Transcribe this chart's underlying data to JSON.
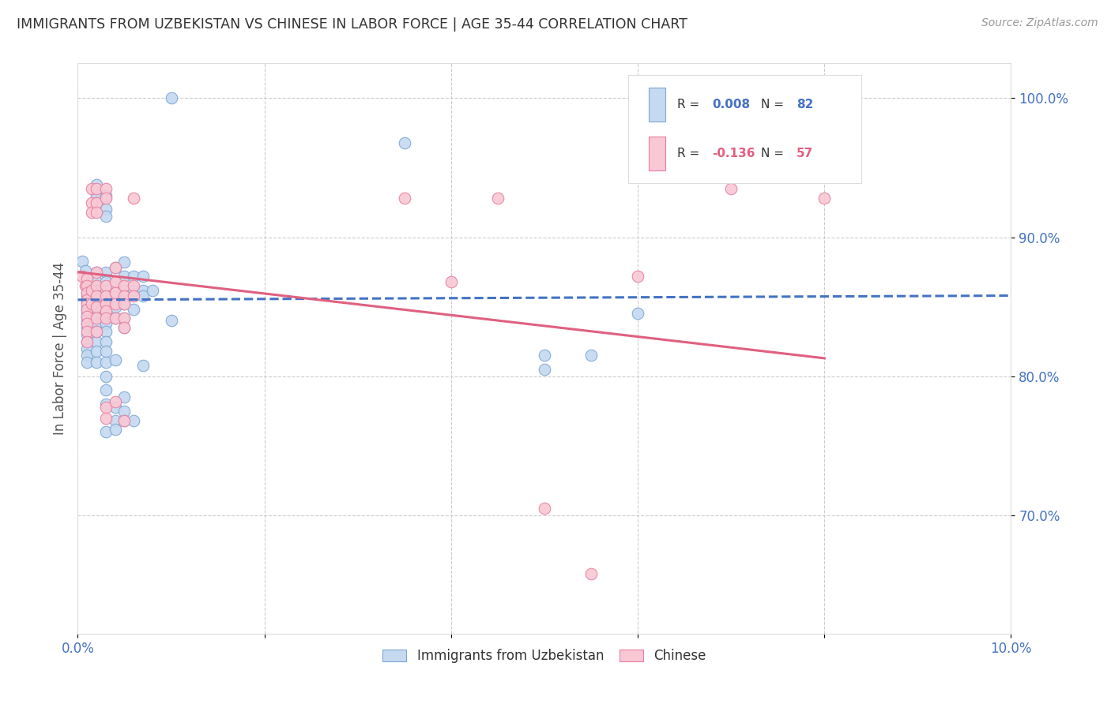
{
  "title": "IMMIGRANTS FROM UZBEKISTAN VS CHINESE IN LABOR FORCE | AGE 35-44 CORRELATION CHART",
  "source": "Source: ZipAtlas.com",
  "ylabel": "In Labor Force | Age 35-44",
  "xlim": [
    0.0,
    0.1
  ],
  "ylim": [
    0.615,
    1.025
  ],
  "yticks": [
    0.7,
    0.8,
    0.9,
    1.0
  ],
  "ytick_labels": [
    "70.0%",
    "80.0%",
    "90.0%",
    "100.0%"
  ],
  "xticks": [
    0.0,
    0.02,
    0.04,
    0.06,
    0.08,
    0.1
  ],
  "xtick_labels": [
    "0.0%",
    "",
    "",
    "",
    "",
    "10.0%"
  ],
  "uzbek_color": "#c5d9f0",
  "chinese_color": "#f9c8d4",
  "uzbek_edge_color": "#7ea6d4",
  "chinese_edge_color": "#e87fa0",
  "uzbek_line_color": "#4472c4",
  "chinese_line_color": "#e06080",
  "background_color": "#ffffff",
  "grid_color": "#cccccc",
  "title_color": "#333333",
  "axis_tick_color": "#4472c4",
  "uzbek_scatter": [
    [
      0.0005,
      0.883
    ],
    [
      0.0008,
      0.876
    ],
    [
      0.001,
      0.87
    ],
    [
      0.001,
      0.865
    ],
    [
      0.001,
      0.86
    ],
    [
      0.001,
      0.858
    ],
    [
      0.001,
      0.855
    ],
    [
      0.001,
      0.853
    ],
    [
      0.001,
      0.85
    ],
    [
      0.001,
      0.848
    ],
    [
      0.001,
      0.845
    ],
    [
      0.001,
      0.843
    ],
    [
      0.001,
      0.84
    ],
    [
      0.001,
      0.838
    ],
    [
      0.001,
      0.835
    ],
    [
      0.001,
      0.83
    ],
    [
      0.001,
      0.825
    ],
    [
      0.001,
      0.82
    ],
    [
      0.001,
      0.815
    ],
    [
      0.001,
      0.81
    ],
    [
      0.0015,
      0.862
    ],
    [
      0.0015,
      0.858
    ],
    [
      0.0015,
      0.852
    ],
    [
      0.002,
      0.938
    ],
    [
      0.002,
      0.93
    ],
    [
      0.002,
      0.925
    ],
    [
      0.002,
      0.875
    ],
    [
      0.002,
      0.868
    ],
    [
      0.002,
      0.862
    ],
    [
      0.002,
      0.858
    ],
    [
      0.002,
      0.852
    ],
    [
      0.002,
      0.847
    ],
    [
      0.002,
      0.843
    ],
    [
      0.002,
      0.838
    ],
    [
      0.002,
      0.832
    ],
    [
      0.002,
      0.825
    ],
    [
      0.002,
      0.818
    ],
    [
      0.002,
      0.81
    ],
    [
      0.003,
      0.93
    ],
    [
      0.003,
      0.92
    ],
    [
      0.003,
      0.915
    ],
    [
      0.003,
      0.875
    ],
    [
      0.003,
      0.868
    ],
    [
      0.003,
      0.862
    ],
    [
      0.003,
      0.857
    ],
    [
      0.003,
      0.852
    ],
    [
      0.003,
      0.846
    ],
    [
      0.003,
      0.842
    ],
    [
      0.003,
      0.838
    ],
    [
      0.003,
      0.832
    ],
    [
      0.003,
      0.825
    ],
    [
      0.003,
      0.818
    ],
    [
      0.003,
      0.81
    ],
    [
      0.003,
      0.8
    ],
    [
      0.003,
      0.79
    ],
    [
      0.003,
      0.78
    ],
    [
      0.003,
      0.76
    ],
    [
      0.004,
      0.878
    ],
    [
      0.004,
      0.868
    ],
    [
      0.004,
      0.858
    ],
    [
      0.004,
      0.85
    ],
    [
      0.004,
      0.842
    ],
    [
      0.004,
      0.812
    ],
    [
      0.004,
      0.778
    ],
    [
      0.004,
      0.768
    ],
    [
      0.004,
      0.762
    ],
    [
      0.005,
      0.882
    ],
    [
      0.005,
      0.872
    ],
    [
      0.005,
      0.862
    ],
    [
      0.005,
      0.852
    ],
    [
      0.005,
      0.842
    ],
    [
      0.005,
      0.835
    ],
    [
      0.005,
      0.785
    ],
    [
      0.005,
      0.775
    ],
    [
      0.005,
      0.768
    ],
    [
      0.006,
      0.872
    ],
    [
      0.006,
      0.862
    ],
    [
      0.006,
      0.848
    ],
    [
      0.006,
      0.768
    ],
    [
      0.007,
      0.872
    ],
    [
      0.007,
      0.862
    ],
    [
      0.007,
      0.858
    ],
    [
      0.007,
      0.808
    ],
    [
      0.008,
      0.862
    ],
    [
      0.01,
      1.0
    ],
    [
      0.01,
      0.84
    ],
    [
      0.035,
      0.968
    ],
    [
      0.05,
      0.815
    ],
    [
      0.05,
      0.805
    ],
    [
      0.055,
      0.815
    ],
    [
      0.06,
      0.845
    ]
  ],
  "chinese_scatter": [
    [
      0.0005,
      0.872
    ],
    [
      0.0008,
      0.865
    ],
    [
      0.001,
      0.87
    ],
    [
      0.001,
      0.865
    ],
    [
      0.001,
      0.86
    ],
    [
      0.001,
      0.855
    ],
    [
      0.001,
      0.852
    ],
    [
      0.001,
      0.848
    ],
    [
      0.001,
      0.843
    ],
    [
      0.001,
      0.838
    ],
    [
      0.001,
      0.832
    ],
    [
      0.001,
      0.825
    ],
    [
      0.0015,
      0.935
    ],
    [
      0.0015,
      0.925
    ],
    [
      0.0015,
      0.918
    ],
    [
      0.0015,
      0.862
    ],
    [
      0.0015,
      0.852
    ],
    [
      0.002,
      0.935
    ],
    [
      0.002,
      0.925
    ],
    [
      0.002,
      0.918
    ],
    [
      0.002,
      0.875
    ],
    [
      0.002,
      0.865
    ],
    [
      0.002,
      0.858
    ],
    [
      0.002,
      0.85
    ],
    [
      0.002,
      0.842
    ],
    [
      0.002,
      0.832
    ],
    [
      0.003,
      0.935
    ],
    [
      0.003,
      0.928
    ],
    [
      0.003,
      0.865
    ],
    [
      0.003,
      0.858
    ],
    [
      0.003,
      0.852
    ],
    [
      0.003,
      0.847
    ],
    [
      0.003,
      0.842
    ],
    [
      0.003,
      0.778
    ],
    [
      0.003,
      0.77
    ],
    [
      0.004,
      0.878
    ],
    [
      0.004,
      0.868
    ],
    [
      0.004,
      0.86
    ],
    [
      0.004,
      0.852
    ],
    [
      0.004,
      0.842
    ],
    [
      0.004,
      0.782
    ],
    [
      0.005,
      0.865
    ],
    [
      0.005,
      0.858
    ],
    [
      0.005,
      0.852
    ],
    [
      0.005,
      0.842
    ],
    [
      0.005,
      0.835
    ],
    [
      0.005,
      0.768
    ],
    [
      0.006,
      0.928
    ],
    [
      0.006,
      0.865
    ],
    [
      0.006,
      0.858
    ],
    [
      0.035,
      0.928
    ],
    [
      0.04,
      0.868
    ],
    [
      0.045,
      0.928
    ],
    [
      0.05,
      0.705
    ],
    [
      0.055,
      0.658
    ],
    [
      0.06,
      0.872
    ],
    [
      0.07,
      0.935
    ],
    [
      0.08,
      0.928
    ]
  ],
  "uzbek_trendline": [
    [
      0.0,
      0.855
    ],
    [
      0.1,
      0.858
    ]
  ],
  "chinese_trendline": [
    [
      0.0,
      0.875
    ],
    [
      0.08,
      0.813
    ]
  ]
}
